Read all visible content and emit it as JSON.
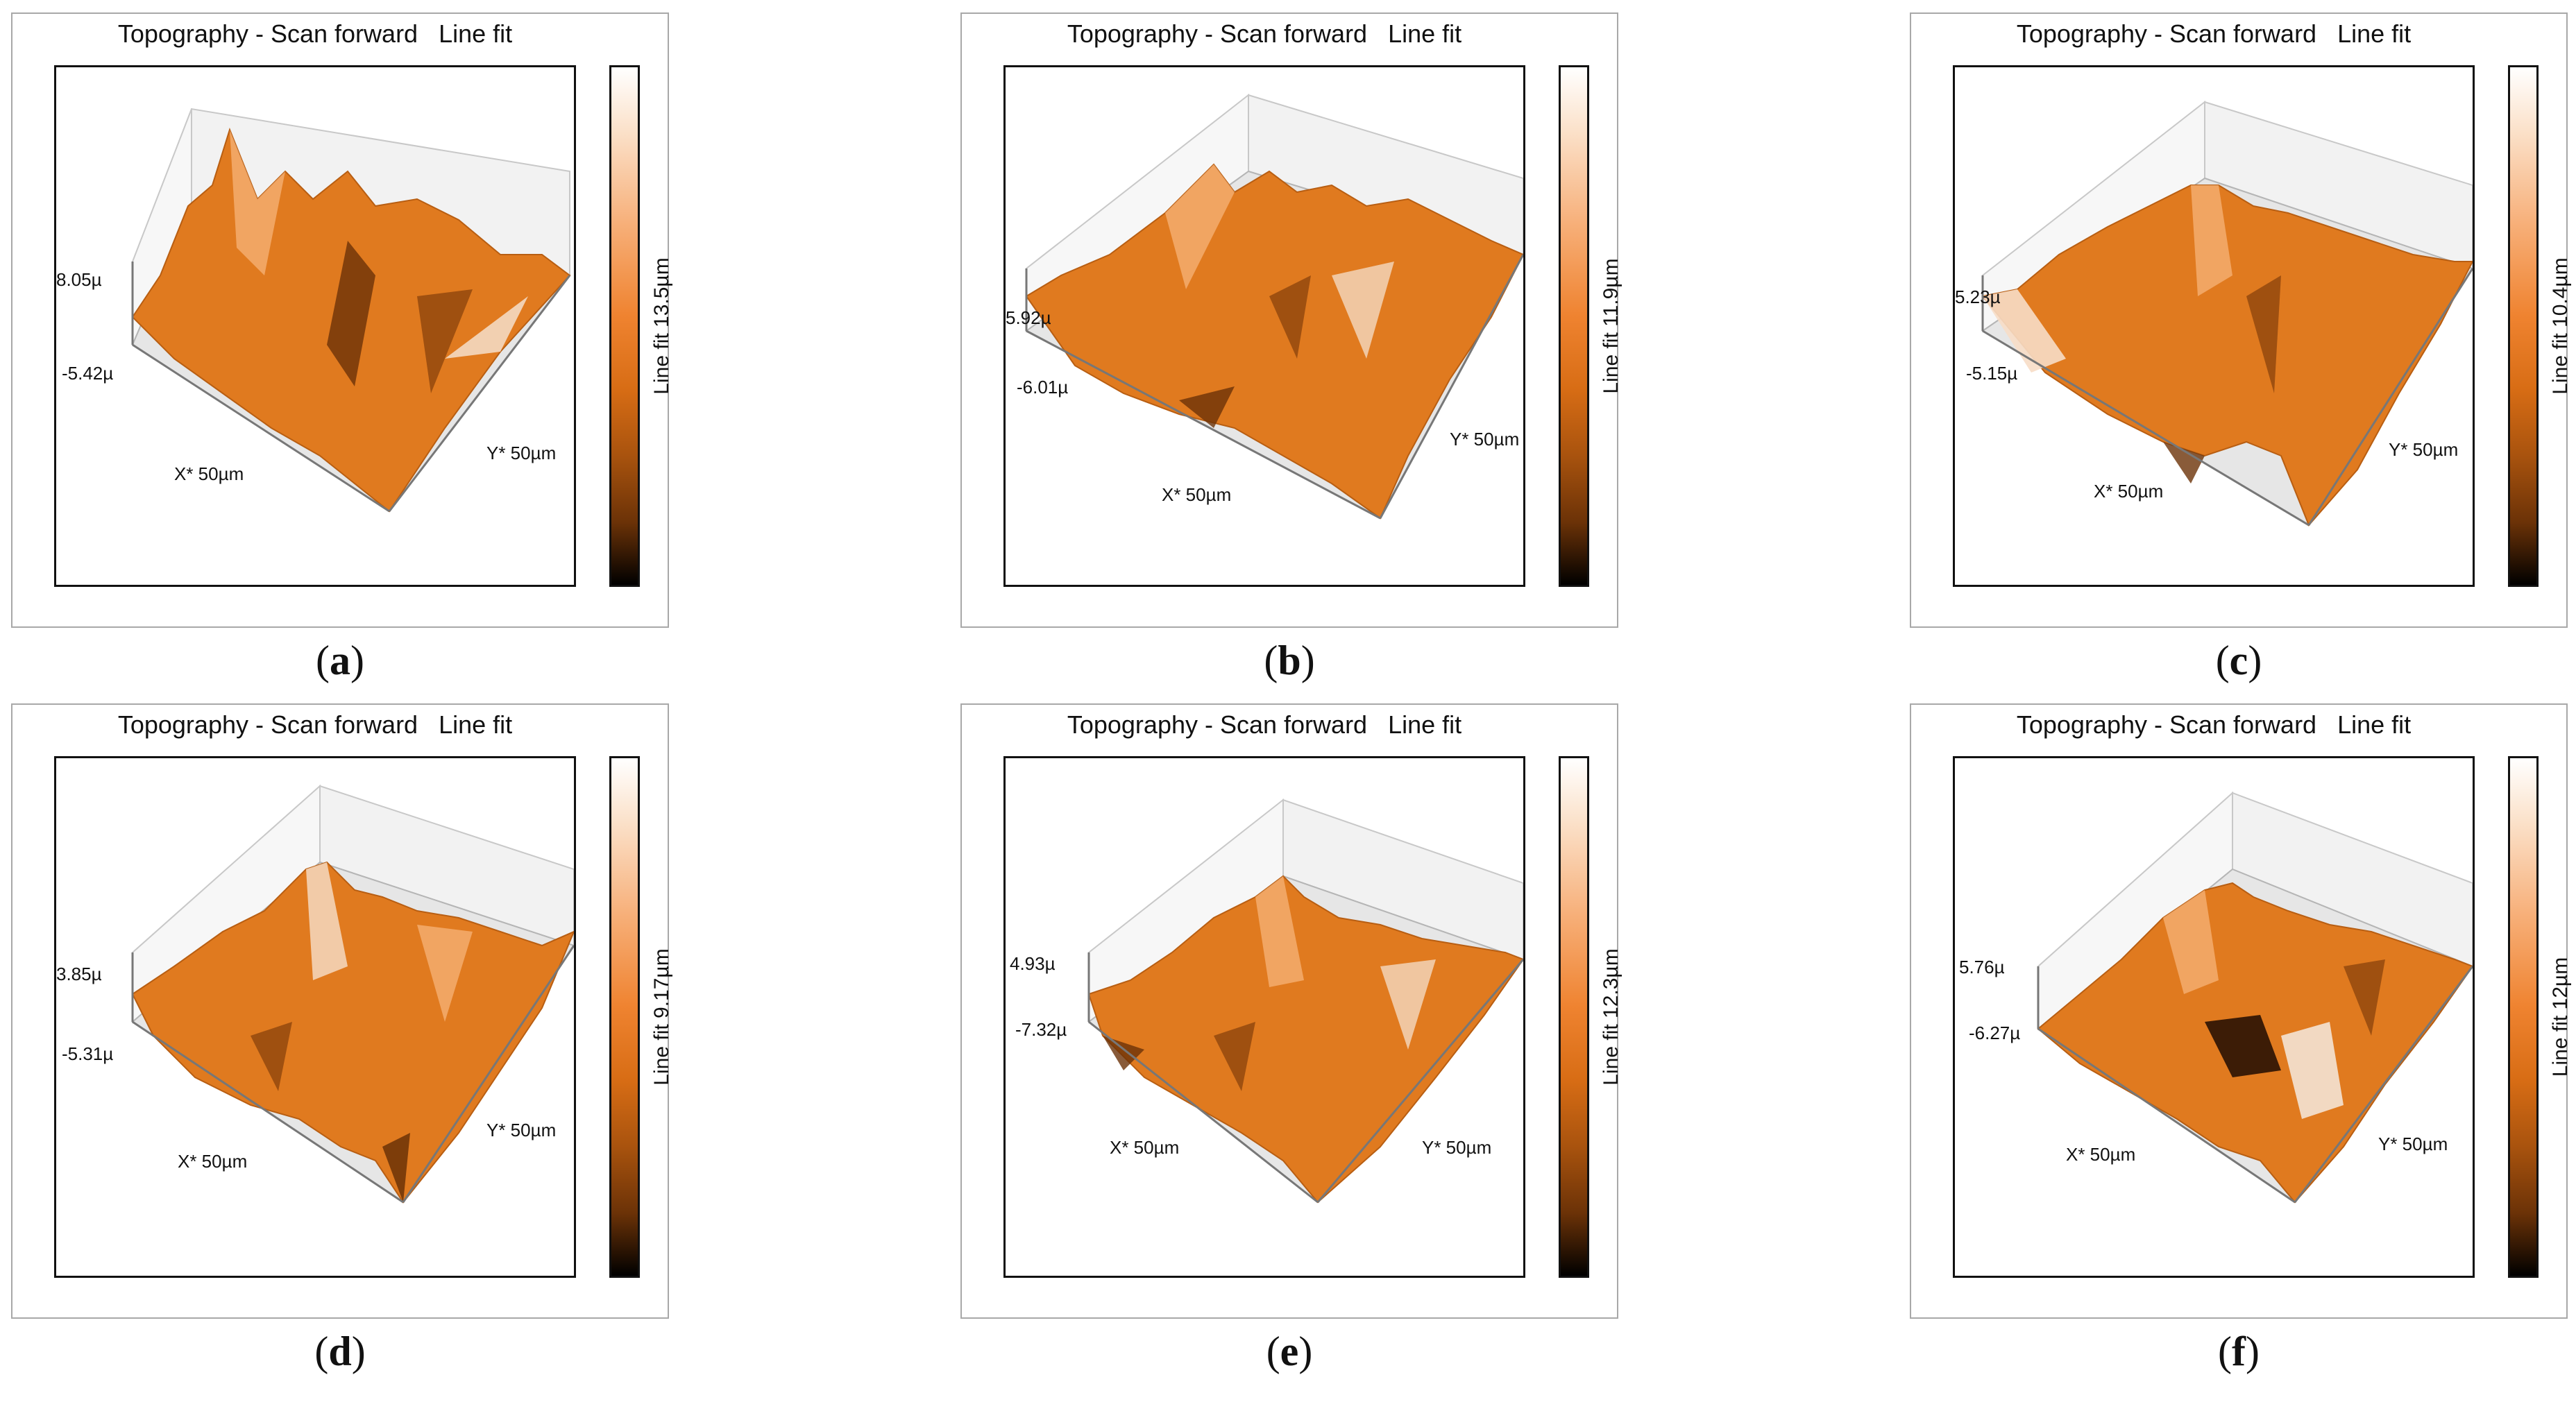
{
  "panels": [
    {
      "title": "Topography - Scan forward   Line fit",
      "colorbar_label": "Line fit 13.5µm",
      "z_top": "8.05µ",
      "z_bottom": "-5.42µ",
      "x_label": "X* 50µm",
      "y_label": "Y* 50µm",
      "caption_letter": "a"
    },
    {
      "title": "Topography - Scan forward   Line fit",
      "colorbar_label": "Line fit 11.9µm",
      "z_top": "5.92µ",
      "z_bottom": "-6.01µ",
      "x_label": "X* 50µm",
      "y_label": "Y* 50µm",
      "caption_letter": "b"
    },
    {
      "title": "Topography - Scan forward   Line fit",
      "colorbar_label": "Line fit 10.4µm",
      "z_top": "5.23µ",
      "z_bottom": "-5.15µ",
      "x_label": "X* 50µm",
      "y_label": "Y* 50µm",
      "caption_letter": "c"
    },
    {
      "title": "Topography - Scan forward   Line fit",
      "colorbar_label": "Line fit 9.17µm",
      "z_top": "3.85µ",
      "z_bottom": "-5.31µ",
      "x_label": "X* 50µm",
      "y_label": "Y* 50µm",
      "caption_letter": "d"
    },
    {
      "title": "Topography - Scan forward   Line fit",
      "colorbar_label": "Line fit 12.3µm",
      "z_top": "4.93µ",
      "z_bottom": "-7.32µ",
      "x_label": "X* 50µm",
      "y_label": "Y* 50µm",
      "caption_letter": "e"
    },
    {
      "title": "Topography - Scan forward   Line fit",
      "colorbar_label": "Line fit 12µm",
      "z_top": "5.76µ",
      "z_bottom": "-6.27µ",
      "x_label": "X* 50µm",
      "y_label": "Y* 50µm",
      "caption_letter": "f"
    }
  ],
  "caption_open": "(",
  "caption_close": ")",
  "colors": {
    "surface_base": "#e07a1f",
    "surface_light": "#f7b47a",
    "surface_dark": "#6b3207",
    "frame_grid": "#c8c8c8"
  }
}
